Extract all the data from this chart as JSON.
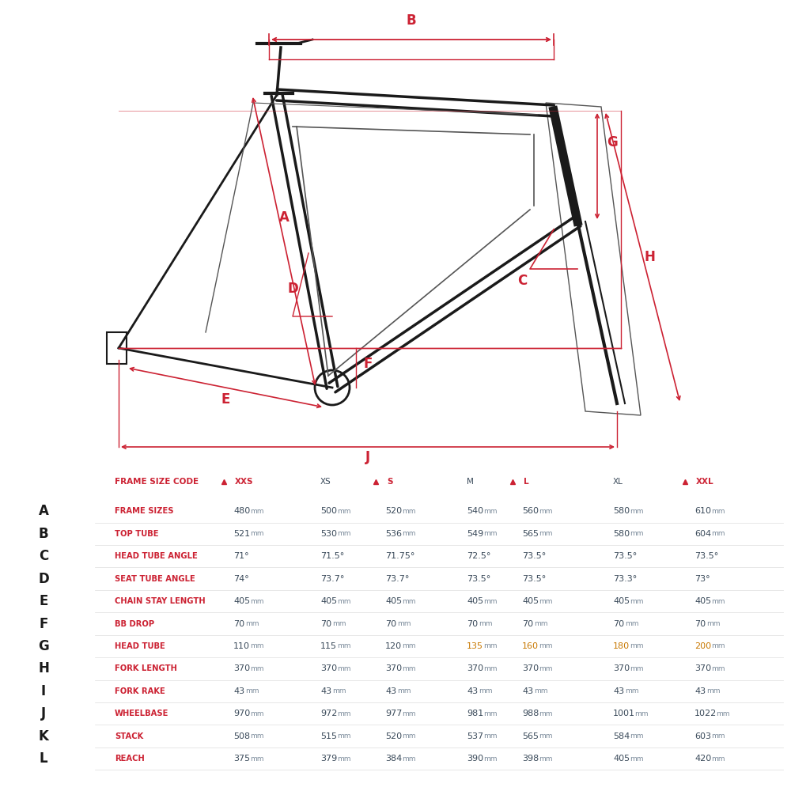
{
  "bg_color": "#ffffff",
  "red": "#cc2233",
  "dark": "#1a1a1a",
  "gray": "#555555",
  "light_gray": "#aaaaaa",
  "text_color": "#3a4a5a",
  "dim_color": "#7a8a9a",
  "amber_color": "#c87800",
  "row_letter_color": "#1a1a1a",
  "header_color": "#cc2233",
  "frame_size_code_label": "FRAME SIZE CODE",
  "sizes": [
    "XXS",
    "XS",
    "S",
    "M",
    "L",
    "XL",
    "XXL"
  ],
  "sizes_with_triangle": [
    "XXS",
    "S",
    "L",
    "XXL"
  ],
  "rows": [
    {
      "letter": "A",
      "name": "FRAME SIZES",
      "values": [
        "480 mm",
        "500 mm",
        "520 mm",
        "540 mm",
        "560 mm",
        "580 mm",
        "610 mm"
      ]
    },
    {
      "letter": "B",
      "name": "TOP TUBE",
      "values": [
        "521 mm",
        "530 mm",
        "536 mm",
        "549 mm",
        "565 mm",
        "580 mm",
        "604 mm"
      ]
    },
    {
      "letter": "C",
      "name": "HEAD TUBE ANGLE",
      "values": [
        "71°",
        "71.5°",
        "71.75°",
        "72.5°",
        "73.5°",
        "73.5°",
        "73.5°"
      ]
    },
    {
      "letter": "D",
      "name": "SEAT TUBE ANGLE",
      "values": [
        "74°",
        "73.7°",
        "73.7°",
        "73.5°",
        "73.5°",
        "73.3°",
        "73°"
      ]
    },
    {
      "letter": "E",
      "name": "CHAIN STAY LENGTH",
      "values": [
        "405 mm",
        "405 mm",
        "405 mm",
        "405 mm",
        "405 mm",
        "405 mm",
        "405 mm"
      ]
    },
    {
      "letter": "F",
      "name": "BB DROP",
      "values": [
        "70 mm",
        "70 mm",
        "70 mm",
        "70 mm",
        "70 mm",
        "70 mm",
        "70 mm"
      ]
    },
    {
      "letter": "G",
      "name": "HEAD TUBE",
      "values": [
        "110 mm",
        "115 mm",
        "120 mm",
        "135 mm",
        "160 mm",
        "180 mm",
        "200 mm"
      ],
      "amber_cols": [
        3,
        4,
        5,
        6
      ]
    },
    {
      "letter": "H",
      "name": "FORK LENGTH",
      "values": [
        "370 mm",
        "370 mm",
        "370 mm",
        "370 mm",
        "370 mm",
        "370 mm",
        "370 mm"
      ]
    },
    {
      "letter": "I",
      "name": "FORK RAKE",
      "values": [
        "43 mm",
        "43 mm",
        "43 mm",
        "43 mm",
        "43 mm",
        "43 mm",
        "43 mm"
      ]
    },
    {
      "letter": "J",
      "name": "WHEELBASE",
      "values": [
        "970 mm",
        "972 mm",
        "977 mm",
        "981 mm",
        "988 mm",
        "1001 mm",
        "1022 mm"
      ]
    },
    {
      "letter": "K",
      "name": "STACK",
      "values": [
        "508 mm",
        "515 mm",
        "520 mm",
        "537 mm",
        "565 mm",
        "584 mm",
        "603 mm"
      ]
    },
    {
      "letter": "L",
      "name": "REACH",
      "values": [
        "375 mm",
        "379 mm",
        "384 mm",
        "390 mm",
        "398 mm",
        "405 mm",
        "420 mm"
      ]
    }
  ]
}
